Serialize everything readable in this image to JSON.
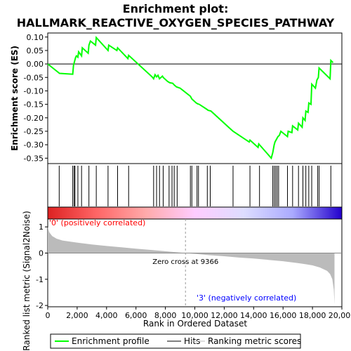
{
  "chart_data": {
    "type": "line",
    "title_line1": "Enrichment plot:",
    "title_line2": "HALLMARK_REACTIVE_OXYGEN_SPECIES_PATHWAY",
    "es_panel": {
      "ylabel": "Enrichment score (ES)",
      "yticks": [
        "0.10",
        "0.05",
        "0.00",
        "-0.05",
        "-0.10",
        "-0.15",
        "-0.20",
        "-0.25",
        "-0.30",
        "-0.35"
      ],
      "ytick_values": [
        0.1,
        0.05,
        0.0,
        -0.05,
        -0.1,
        -0.15,
        -0.2,
        -0.25,
        -0.3,
        -0.35
      ],
      "ylim": [
        -0.37,
        0.115
      ],
      "xlim": [
        0,
        20000
      ],
      "series": [
        {
          "name": "Enrichment profile",
          "color": "#00ff00",
          "x": [
            0,
            800,
            1700,
            1750,
            1800,
            1900,
            1950,
            2050,
            2100,
            2300,
            2350,
            2750,
            2800,
            2900,
            3250,
            3300,
            4100,
            4150,
            4700,
            4750,
            5450,
            5500,
            7100,
            7200,
            7300,
            7400,
            7500,
            7600,
            7800,
            7850,
            8150,
            8300,
            8500,
            8600,
            8750,
            9000,
            9700,
            9800,
            10100,
            10200,
            10300,
            10800,
            10900,
            11100,
            12500,
            12600,
            13700,
            13750,
            14300,
            14350,
            15200,
            15300,
            15400,
            15450,
            15550,
            15650,
            15750,
            15850,
            16300,
            16350,
            16600,
            16650,
            17000,
            17050,
            17300,
            17350,
            17500,
            17550,
            17700,
            17750,
            17900,
            17950,
            18200,
            18300,
            18400,
            18450,
            19200,
            19250,
            19400
          ],
          "y": [
            0.0,
            -0.035,
            -0.038,
            -0.005,
            0.005,
            0.025,
            0.03,
            0.025,
            0.045,
            0.03,
            0.06,
            0.04,
            0.07,
            0.085,
            0.07,
            0.098,
            0.05,
            0.07,
            0.05,
            0.06,
            0.02,
            0.032,
            -0.048,
            -0.055,
            -0.04,
            -0.048,
            -0.042,
            -0.055,
            -0.045,
            -0.05,
            -0.065,
            -0.07,
            -0.072,
            -0.078,
            -0.085,
            -0.09,
            -0.12,
            -0.13,
            -0.145,
            -0.148,
            -0.15,
            -0.168,
            -0.172,
            -0.175,
            -0.245,
            -0.25,
            -0.29,
            -0.283,
            -0.31,
            -0.297,
            -0.35,
            -0.33,
            -0.3,
            -0.29,
            -0.28,
            -0.27,
            -0.265,
            -0.25,
            -0.27,
            -0.25,
            -0.255,
            -0.23,
            -0.245,
            -0.22,
            -0.235,
            -0.2,
            -0.21,
            -0.175,
            -0.18,
            -0.145,
            -0.15,
            -0.075,
            -0.09,
            -0.06,
            -0.05,
            -0.015,
            -0.055,
            0.013,
            0.005
          ]
        }
      ]
    },
    "hits_panel": {
      "legend_name": "Hits",
      "positions": [
        780,
        1700,
        1800,
        1850,
        2050,
        2300,
        2800,
        3300,
        4100,
        4750,
        5500,
        7200,
        7400,
        7600,
        7850,
        8250,
        8450,
        8600,
        8800,
        9700,
        9800,
        10150,
        10250,
        10850,
        11050,
        12600,
        13750,
        14400,
        15300,
        15400,
        15500,
        15600,
        15700,
        16300,
        16650,
        17050,
        17350,
        17550,
        17750,
        17950,
        18350,
        18450,
        19250
      ]
    },
    "ranking_panel": {
      "ylabel": "Ranked list metric (Signal2Noise)",
      "yticks": [
        "1",
        "0",
        "-1",
        "-2"
      ],
      "ytick_values": [
        1,
        0,
        -1,
        -2
      ],
      "ylim": [
        -2.05,
        1.3
      ],
      "legend_name": "Ranking metric scores",
      "zero_cross_label": "Zero cross at 9366",
      "zero_cross": 9366,
      "pos_label": "'0' (positively correlated)",
      "neg_label": "'3' (negatively correlated)",
      "metric_x": [
        0,
        100,
        300,
        600,
        1000,
        2000,
        3000,
        4000,
        5000,
        6000,
        7000,
        8000,
        9000,
        9366,
        10000,
        11000,
        12000,
        13000,
        14000,
        15000,
        16000,
        17000,
        17500,
        18000,
        18500,
        19000,
        19200,
        19350,
        19450,
        19500
      ],
      "metric_y": [
        1.0,
        0.8,
        0.65,
        0.55,
        0.48,
        0.4,
        0.33,
        0.27,
        0.22,
        0.17,
        0.12,
        0.07,
        0.02,
        0.0,
        -0.03,
        -0.08,
        -0.12,
        -0.17,
        -0.21,
        -0.26,
        -0.31,
        -0.38,
        -0.42,
        -0.47,
        -0.55,
        -0.68,
        -0.8,
        -1.0,
        -1.4,
        -1.95
      ]
    },
    "xaxis": {
      "label": "Rank in Ordered Dataset",
      "ticks": [
        "0",
        "2,000",
        "4,000",
        "6,000",
        "8,000",
        "10,000",
        "12,000",
        "14,000",
        "16,000",
        "18,000",
        "20,000"
      ],
      "tick_values": [
        0,
        2000,
        4000,
        6000,
        8000,
        10000,
        12000,
        14000,
        16000,
        18000,
        20000
      ]
    },
    "legend": {
      "placement": "bottom",
      "items": [
        {
          "name": "Enrichment profile",
          "color": "#00ff00"
        },
        {
          "name": "Hits",
          "color": "#000000"
        },
        {
          "name": "Ranking metric scores",
          "color": "#bbbbbb"
        }
      ]
    },
    "gradient_colors": [
      "#dd2222",
      "#ff6666",
      "#ffaaaa",
      "#ffccff",
      "#ddddff",
      "#aaaaff",
      "#2200cc"
    ]
  }
}
